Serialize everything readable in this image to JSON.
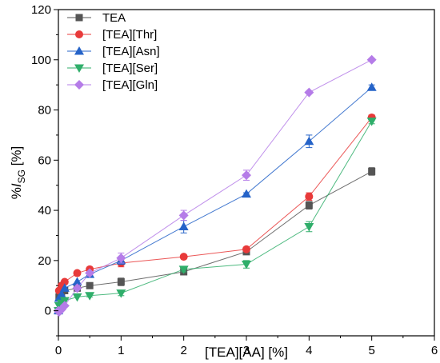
{
  "chart_data": {
    "type": "line",
    "title": "",
    "xlabel": "[TEA][AA] [%]",
    "ylabel": {
      "prefix": "%",
      "symbol": "I",
      "subscript": "SG",
      "suffix": " [%]"
    },
    "xlim": [
      0,
      6
    ],
    "ylim": [
      -10,
      120
    ],
    "xticks": [
      0,
      1,
      2,
      3,
      4,
      5,
      6
    ],
    "yticks": [
      0,
      20,
      40,
      60,
      80,
      100,
      120
    ],
    "grid": false,
    "legend_position": "top-left",
    "x": [
      0,
      0.01,
      0.05,
      0.1,
      0.3,
      0.5,
      1,
      2,
      3,
      4,
      5
    ],
    "series": [
      {
        "name": "TEA",
        "color": "#555555",
        "marker": "square",
        "values": [
          0,
          5.5,
          6.5,
          8,
          9,
          10,
          11.5,
          15.5,
          23.5,
          42,
          55.5
        ],
        "err": [
          0,
          0,
          0,
          0,
          0,
          0.5,
          1.5,
          0.5,
          0.5,
          1.5,
          1.5
        ]
      },
      {
        "name": "[TEA][Thr]",
        "color": "#e83a3a",
        "marker": "circle",
        "values": [
          0,
          8,
          10,
          11.5,
          15,
          16.5,
          19,
          21.5,
          24.5,
          45.5,
          77
        ],
        "err": [
          0,
          0,
          0,
          0,
          0,
          0.5,
          1.5,
          0.5,
          0.5,
          1.5,
          1
        ]
      },
      {
        "name": "[TEA][Asn]",
        "color": "#2563c8",
        "marker": "triangle-up",
        "values": [
          0,
          5,
          6.5,
          9,
          11.5,
          14.5,
          20,
          33.5,
          46.5,
          67.5,
          89
        ],
        "err": [
          0,
          0,
          0,
          0,
          0,
          0.5,
          1.5,
          2.5,
          0.5,
          2.5,
          1
        ]
      },
      {
        "name": "[TEA][Ser]",
        "color": "#2fae6a",
        "marker": "triangle-down",
        "values": [
          0,
          2,
          3,
          4,
          5.5,
          6,
          7,
          16.5,
          18.5,
          33.5,
          75.5
        ],
        "err": [
          0,
          0,
          0,
          0,
          0,
          0.5,
          1,
          1,
          1.5,
          2,
          1
        ]
      },
      {
        "name": "[TEA][Gln]",
        "color": "#b57ce8",
        "marker": "diamond",
        "values": [
          0,
          -0.5,
          0.5,
          2,
          9,
          15,
          21,
          38,
          54,
          87,
          100
        ],
        "err": [
          0,
          0,
          0,
          0,
          0,
          0.5,
          2,
          2,
          2,
          0.5,
          0.5
        ]
      }
    ]
  }
}
